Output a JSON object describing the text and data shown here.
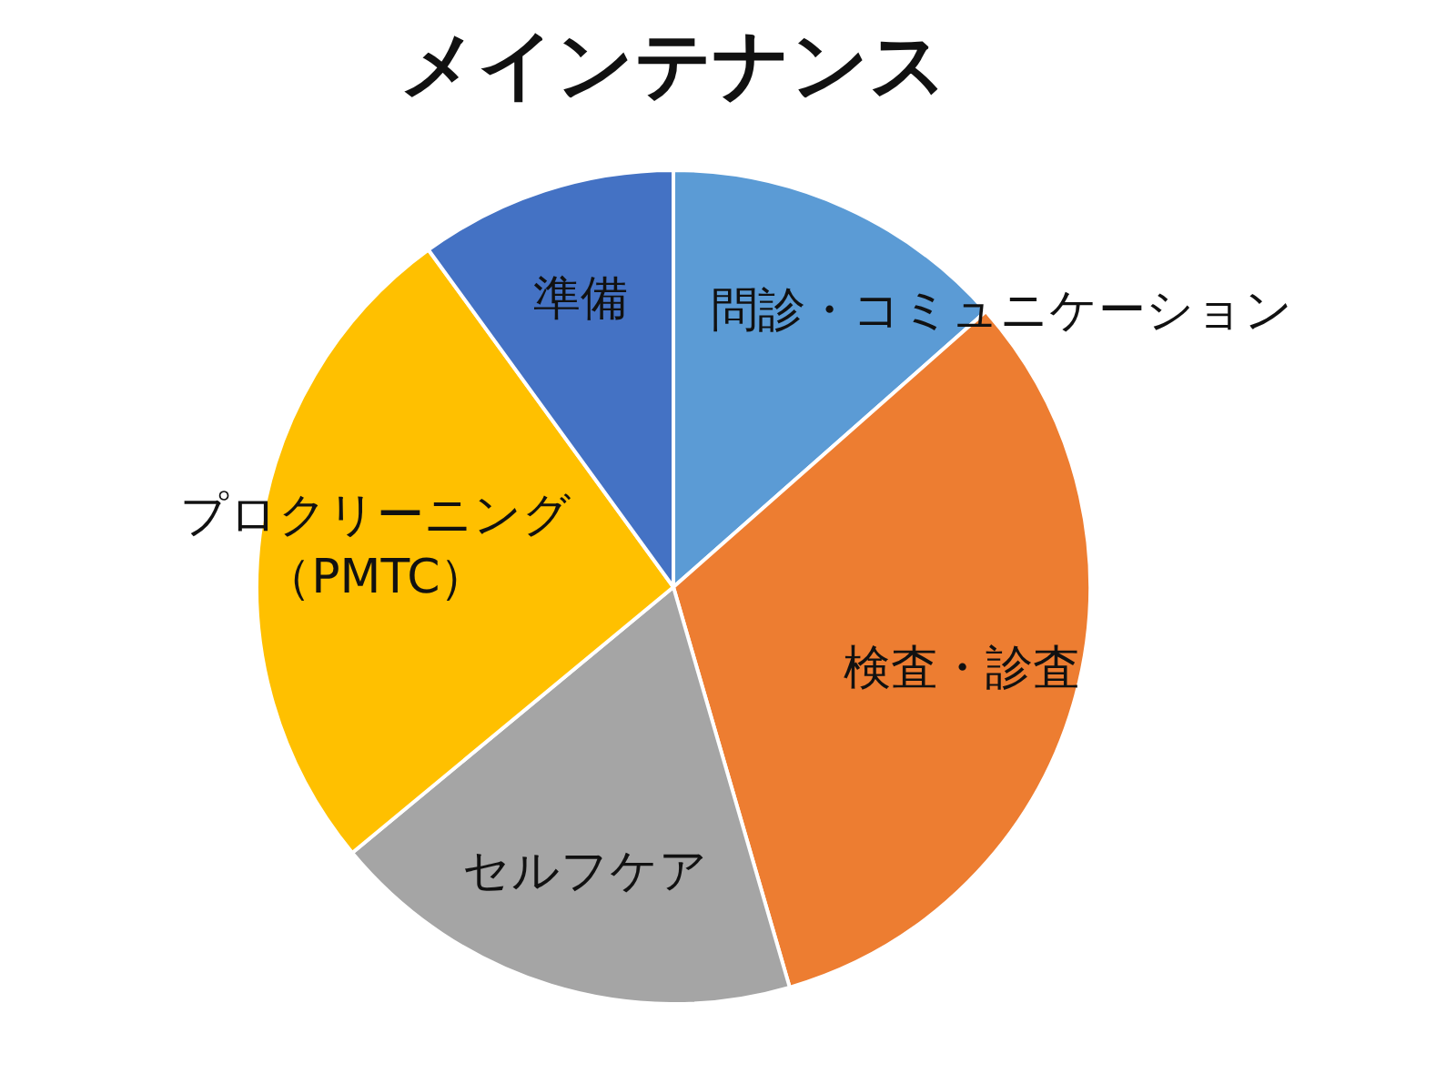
{
  "chart_data": {
    "type": "pie",
    "title": "メインテナンス",
    "categories": [
      "問診・コミュニケーション",
      "検査・診査",
      "セルフケア",
      "プロクリーニング（PMTC）",
      "準備"
    ],
    "values": [
      13.5,
      32,
      18.5,
      26,
      10
    ],
    "colors": [
      "#5b9bd5",
      "#ed7d31",
      "#a5a5a5",
      "#ffc000",
      "#4472c4"
    ],
    "legend": false
  }
}
